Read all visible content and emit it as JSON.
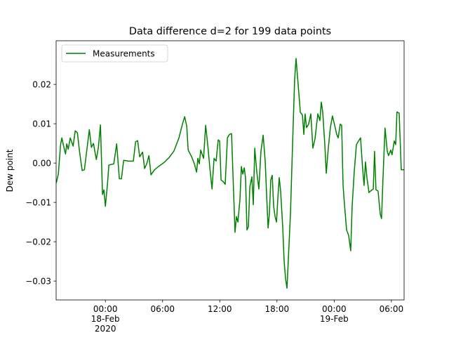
{
  "chart_data": {
    "type": "line",
    "title": "Data difference d=2 for 199 data points",
    "y_label": "Dew point",
    "x": [
      "2020-02-17T18:51",
      "2020-02-17T19:04",
      "2020-02-17T19:18",
      "2020-02-17T19:26",
      "2020-02-17T19:35",
      "2020-02-17T19:49",
      "2020-02-17T19:57",
      "2020-02-17T20:06",
      "2020-02-17T20:19",
      "2020-02-17T20:37",
      "2020-02-17T20:50",
      "2020-02-17T21:04",
      "2020-02-17T21:17",
      "2020-02-17T21:34",
      "2020-02-17T21:48",
      "2020-02-17T22:01",
      "2020-02-17T22:19",
      "2020-02-17T22:32",
      "2020-02-17T22:45",
      "2020-02-17T23:03",
      "2020-02-17T23:16",
      "2020-02-17T23:29",
      "2020-02-17T23:42",
      "2020-02-17T23:51",
      "2020-02-18T00:00",
      "2020-02-18T00:13",
      "2020-02-18T00:22",
      "2020-02-18T00:53",
      "2020-02-18T01:11",
      "2020-02-18T01:28",
      "2020-02-18T01:41",
      "2020-02-18T01:55",
      "2020-02-18T02:26",
      "2020-02-18T02:56",
      "2020-02-18T03:10",
      "2020-02-18T03:23",
      "2020-02-18T03:36",
      "2020-02-18T03:54",
      "2020-02-18T04:07",
      "2020-02-18T04:20",
      "2020-02-18T04:34",
      "2020-02-18T04:47",
      "2020-02-18T05:09",
      "2020-02-18T05:40",
      "2020-02-18T06:11",
      "2020-02-18T06:41",
      "2020-02-18T07:12",
      "2020-02-18T07:43",
      "2020-02-18T08:05",
      "2020-02-18T08:19",
      "2020-02-18T08:32",
      "2020-02-18T08:41",
      "2020-02-18T09:03",
      "2020-02-18T09:20",
      "2020-02-18T09:34",
      "2020-02-18T09:42",
      "2020-02-18T09:51",
      "2020-02-18T10:00",
      "2020-02-18T10:18",
      "2020-02-18T10:31",
      "2020-02-18T10:44",
      "2020-02-18T10:57",
      "2020-02-18T11:11",
      "2020-02-18T11:24",
      "2020-02-18T11:37",
      "2020-02-18T11:50",
      "2020-02-18T11:59",
      "2020-02-18T12:08",
      "2020-02-18T12:21",
      "2020-02-18T12:34",
      "2020-02-18T12:48",
      "2020-02-18T13:01",
      "2020-02-18T13:14",
      "2020-02-18T13:27",
      "2020-02-18T13:36",
      "2020-02-18T13:45",
      "2020-02-18T13:54",
      "2020-02-18T14:07",
      "2020-02-18T14:16",
      "2020-02-18T14:25",
      "2020-02-18T14:34",
      "2020-02-18T14:42",
      "2020-02-18T14:51",
      "2020-02-18T15:00",
      "2020-02-18T15:09",
      "2020-02-18T15:22",
      "2020-02-18T15:31",
      "2020-02-18T15:40",
      "2020-02-18T15:53",
      "2020-02-18T16:06",
      "2020-02-18T16:19",
      "2020-02-18T16:33",
      "2020-02-18T16:46",
      "2020-02-18T16:55",
      "2020-02-18T17:04",
      "2020-02-18T17:12",
      "2020-02-18T17:21",
      "2020-02-18T17:30",
      "2020-02-18T17:39",
      "2020-02-18T17:48",
      "2020-02-18T17:57",
      "2020-02-18T18:05",
      "2020-02-18T18:14",
      "2020-02-18T18:23",
      "2020-02-18T18:36",
      "2020-02-18T18:45",
      "2020-02-18T18:54",
      "2020-02-18T19:03",
      "2020-02-18T19:12",
      "2020-02-18T19:25",
      "2020-02-18T19:38",
      "2020-02-18T19:51",
      "2020-02-18T20:00",
      "2020-02-18T20:09",
      "2020-02-18T20:27",
      "2020-02-18T20:40",
      "2020-02-18T20:49",
      "2020-02-18T20:57",
      "2020-02-18T21:06",
      "2020-02-18T21:19",
      "2020-02-18T21:33",
      "2020-02-18T21:46",
      "2020-02-18T21:59",
      "2020-02-18T22:17",
      "2020-02-18T22:30",
      "2020-02-18T22:39",
      "2020-02-18T22:48",
      "2020-02-18T23:01",
      "2020-02-18T23:10",
      "2020-02-18T23:23",
      "2020-02-18T23:36",
      "2020-02-18T23:49",
      "2020-02-19T00:03",
      "2020-02-19T00:16",
      "2020-02-19T00:25",
      "2020-02-19T00:38",
      "2020-02-19T00:47",
      "2020-02-19T00:56",
      "2020-02-19T01:04",
      "2020-02-19T01:18",
      "2020-02-19T01:31",
      "2020-02-19T01:44",
      "2020-02-19T01:53",
      "2020-02-19T02:06",
      "2020-02-19T02:20",
      "2020-02-19T02:33",
      "2020-02-19T02:46",
      "2020-02-19T02:59",
      "2020-02-19T03:08",
      "2020-02-19T03:17",
      "2020-02-19T03:26",
      "2020-02-19T03:39",
      "2020-02-19T03:52",
      "2020-02-19T04:06",
      "2020-02-19T04:14",
      "2020-02-19T04:23",
      "2020-02-19T04:36",
      "2020-02-19T04:50",
      "2020-02-19T04:58",
      "2020-02-19T05:07",
      "2020-02-19T05:20",
      "2020-02-19T05:34",
      "2020-02-19T05:42",
      "2020-02-19T05:56",
      "2020-02-19T06:04",
      "2020-02-19T06:18",
      "2020-02-19T06:27",
      "2020-02-19T06:35",
      "2020-02-19T06:49",
      "2020-02-19T07:02",
      "2020-02-19T07:20"
    ],
    "series": [
      {
        "name": "Measurements",
        "color": "#008000",
        "values": [
          -0.005,
          -0.0028,
          0.0047,
          0.0064,
          0.0047,
          0.0023,
          0.0049,
          0.0035,
          0.0064,
          0.0043,
          0.0082,
          0.0077,
          0.003,
          -0.0019,
          -0.0017,
          0.0026,
          0.0085,
          0.004,
          0.005,
          0.0009,
          0.004,
          0.0097,
          -0.008,
          -0.0068,
          -0.011,
          -0.0054,
          -0.0005,
          -0.0002,
          0.0049,
          -0.004,
          -0.004,
          0.0007,
          0.0005,
          0.0005,
          0.0054,
          0.0057,
          0.0016,
          0.0028,
          -0.0014,
          -0.0002,
          0.0019,
          -0.003,
          -0.0017,
          -0.0007,
          0.0002,
          0.0014,
          0.0031,
          0.0064,
          0.0099,
          0.0118,
          0.0094,
          0.0033,
          0.0016,
          -0.0002,
          -0.0023,
          0.0012,
          -0.0002,
          0.0033,
          0.0012,
          0.0096,
          0.0047,
          -0.001,
          -0.0066,
          0.0012,
          0.0005,
          0.0059,
          0.0056,
          -0.0043,
          -0.0047,
          -0.0054,
          0.0064,
          0.0073,
          0.0075,
          -0.0075,
          -0.0176,
          -0.0136,
          -0.015,
          -0.0092,
          -0.0009,
          -0.0028,
          -0.0012,
          -0.0037,
          -0.017,
          -0.0162,
          -0.0061,
          -0.0035,
          -0.0106,
          0.0038,
          -0.0023,
          -0.0066,
          0.003,
          0.0071,
          0.0003,
          -0.0083,
          -0.0165,
          -0.013,
          -0.0043,
          -0.0031,
          -0.011,
          -0.0136,
          -0.015,
          -0.0092,
          -0.0037,
          -0.0071,
          -0.0162,
          -0.0249,
          -0.0294,
          -0.0318,
          -0.024,
          -0.0127,
          0.0047,
          0.0212,
          0.0266,
          0.0221,
          0.0129,
          0.0122,
          0.0073,
          0.0125,
          0.009,
          0.0099,
          0.0125,
          0.0038,
          0.0061,
          0.0125,
          0.0108,
          0.0155,
          0.0129,
          0.0047,
          -0.0026,
          0.0038,
          0.009,
          0.012,
          0.0096,
          0.0073,
          0.0064,
          0.0099,
          0.0096,
          -0.0057,
          -0.0101,
          -0.017,
          -0.0184,
          -0.0223,
          -0.011,
          -0.0023,
          0.0047,
          0.0056,
          0.0064,
          -0.0014,
          -0.0057,
          0.0003,
          -0.0037,
          -0.0075,
          -0.007,
          -0.0066,
          0.003,
          -0.0068,
          -0.0071,
          -0.013,
          -0.0141,
          -0.004,
          0.0089,
          0.003,
          0.0019,
          0.0033,
          0.0021,
          0.0056,
          0.0047,
          0.013,
          0.0127,
          -0.0017,
          -0.0017
        ]
      }
    ],
    "xlim": [
      "2020-02-17T18:50",
      "2020-02-19T07:20"
    ],
    "xticks": [
      {
        "value": "2020-02-18T00:00",
        "label": "00:00\n18-Feb\n2020"
      },
      {
        "value": "2020-02-18T06:00",
        "label": "06:00"
      },
      {
        "value": "2020-02-18T12:00",
        "label": "12:00"
      },
      {
        "value": "2020-02-18T18:00",
        "label": "18:00"
      },
      {
        "value": "2020-02-19T00:00",
        "label": "00:00\n19-Feb"
      },
      {
        "value": "2020-02-19T06:00",
        "label": "06:00"
      }
    ],
    "ylim": [
      -0.0348,
      0.0311
    ],
    "yticks": [
      {
        "value": -0.03,
        "label": "−0.03"
      },
      {
        "value": -0.02,
        "label": "−0.02"
      },
      {
        "value": -0.01,
        "label": "−0.01"
      },
      {
        "value": 0,
        "label": "0.00"
      },
      0.01,
      0.02
    ],
    "legend": "upper left"
  }
}
